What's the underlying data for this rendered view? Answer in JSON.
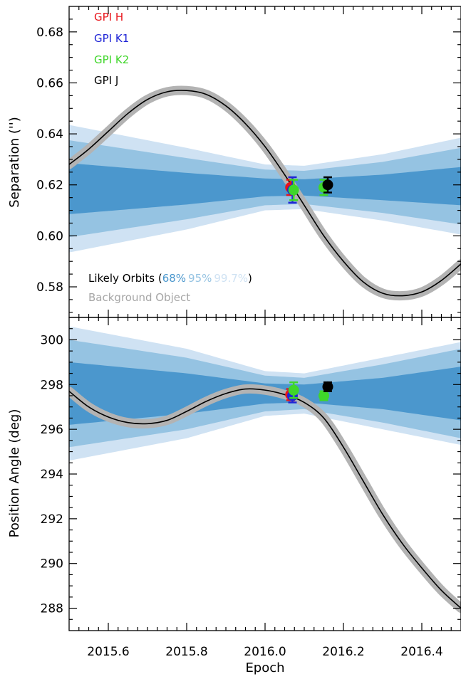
{
  "chart_data": [
    {
      "type": "line",
      "panel": "top",
      "ylabel": "Separation ('')",
      "xlim": [
        2015.5,
        2016.5
      ],
      "ylim": [
        0.568,
        0.69
      ],
      "yticks": [
        "0.58",
        "0.60",
        "0.62",
        "0.64",
        "0.66",
        "0.68"
      ],
      "ytick_values": [
        0.58,
        0.6,
        0.62,
        0.64,
        0.66,
        0.68
      ],
      "bands": {
        "center": [
          [
            2015.5,
            0.6185
          ],
          [
            2015.8,
            0.6185
          ],
          [
            2016.0,
            0.619
          ],
          [
            2016.1,
            0.619
          ],
          [
            2016.3,
            0.619
          ],
          [
            2016.5,
            0.6195
          ]
        ],
        "half_width_68": [
          [
            2015.5,
            0.01
          ],
          [
            2015.8,
            0.0062
          ],
          [
            2016.0,
            0.0035
          ],
          [
            2016.1,
            0.0032
          ],
          [
            2016.3,
            0.005
          ],
          [
            2016.5,
            0.0075
          ]
        ],
        "half_width_95": [
          [
            2015.5,
            0.019
          ],
          [
            2015.8,
            0.012
          ],
          [
            2016.0,
            0.007
          ],
          [
            2016.1,
            0.0065
          ],
          [
            2016.3,
            0.01
          ],
          [
            2016.5,
            0.015
          ]
        ],
        "half_width_99.7": [
          [
            2015.5,
            0.025
          ],
          [
            2015.8,
            0.016
          ],
          [
            2016.0,
            0.009
          ],
          [
            2016.1,
            0.0085
          ],
          [
            2016.3,
            0.013
          ],
          [
            2016.5,
            0.019
          ]
        ]
      },
      "background_track": [
        [
          2015.5,
          0.628
        ],
        [
          2015.55,
          0.634
        ],
        [
          2015.6,
          0.641
        ],
        [
          2015.65,
          0.648
        ],
        [
          2015.7,
          0.6535
        ],
        [
          2015.75,
          0.6565
        ],
        [
          2015.8,
          0.657
        ],
        [
          2015.85,
          0.6555
        ],
        [
          2015.9,
          0.651
        ],
        [
          2015.95,
          0.644
        ],
        [
          2016.0,
          0.635
        ],
        [
          2016.05,
          0.624
        ],
        [
          2016.1,
          0.612
        ],
        [
          2016.15,
          0.6
        ],
        [
          2016.2,
          0.59
        ],
        [
          2016.25,
          0.582
        ],
        [
          2016.3,
          0.5775
        ],
        [
          2016.35,
          0.5765
        ],
        [
          2016.4,
          0.578
        ],
        [
          2016.45,
          0.5825
        ],
        [
          2016.5,
          0.589
        ]
      ],
      "points": [
        {
          "series": "GPI H",
          "x": 2016.065,
          "y": 0.619,
          "yerr": 0.003
        },
        {
          "series": "GPI K1",
          "x": 2016.07,
          "y": 0.618,
          "yerr": 0.005
        },
        {
          "series": "GPI K2",
          "x": 2016.073,
          "y": 0.618,
          "yerr": 0.004
        },
        {
          "series": "GPI K2",
          "x": 2016.15,
          "y": 0.619,
          "yerr": 0.003
        },
        {
          "series": "GPI J",
          "x": 2016.16,
          "y": 0.62,
          "yerr": 0.003
        }
      ],
      "legend": [
        {
          "label": "GPI H",
          "color": "#e8141a"
        },
        {
          "label": "GPI K1",
          "color": "#1f25d6"
        },
        {
          "label": "GPI K2",
          "color": "#3fd62a"
        },
        {
          "label": "GPI J",
          "color": "#000000"
        }
      ],
      "annotation": {
        "likely_prefix": "Likely Orbits (",
        "p68": "68%",
        "p95": "95%",
        "p997": "99.7%",
        "likely_suffix": ")",
        "background": "Background Object"
      }
    },
    {
      "type": "line",
      "panel": "bottom",
      "xlabel": "Epoch",
      "ylabel": "Position Angle (deg)",
      "xlim": [
        2015.5,
        2016.5
      ],
      "ylim": [
        287.0,
        301.0
      ],
      "yticks": [
        "288",
        "290",
        "292",
        "294",
        "296",
        "298",
        "300"
      ],
      "ytick_values": [
        288,
        290,
        292,
        294,
        296,
        298,
        300
      ],
      "xticks": [
        "2015.6",
        "2015.8",
        "2016.0",
        "2016.2",
        "2016.4"
      ],
      "xtick_values": [
        2015.6,
        2015.8,
        2016.0,
        2016.2,
        2016.4
      ],
      "bands": {
        "center": [
          [
            2015.5,
            297.6
          ],
          [
            2015.8,
            297.6
          ],
          [
            2016.0,
            297.6
          ],
          [
            2016.1,
            297.6
          ],
          [
            2016.3,
            297.6
          ],
          [
            2016.5,
            297.6
          ]
        ],
        "half_width_68": [
          [
            2015.5,
            1.4
          ],
          [
            2015.8,
            0.9
          ],
          [
            2016.0,
            0.45
          ],
          [
            2016.1,
            0.4
          ],
          [
            2016.3,
            0.7
          ],
          [
            2016.5,
            1.2
          ]
        ],
        "half_width_95": [
          [
            2015.5,
            2.4
          ],
          [
            2015.8,
            1.6
          ],
          [
            2016.0,
            0.8
          ],
          [
            2016.1,
            0.7
          ],
          [
            2016.3,
            1.3
          ],
          [
            2016.5,
            2.0
          ]
        ],
        "half_width_99.7": [
          [
            2015.5,
            3.0
          ],
          [
            2015.8,
            2.0
          ],
          [
            2016.0,
            1.0
          ],
          [
            2016.1,
            0.9
          ],
          [
            2016.3,
            1.6
          ],
          [
            2016.5,
            2.3
          ]
        ]
      },
      "background_track": [
        [
          2015.5,
          297.7
        ],
        [
          2015.55,
          297.0
        ],
        [
          2015.6,
          296.55
        ],
        [
          2015.65,
          296.3
        ],
        [
          2015.7,
          296.25
        ],
        [
          2015.75,
          296.4
        ],
        [
          2015.8,
          296.8
        ],
        [
          2015.85,
          297.25
        ],
        [
          2015.9,
          297.6
        ],
        [
          2015.95,
          297.8
        ],
        [
          2016.0,
          297.75
        ],
        [
          2016.05,
          297.55
        ],
        [
          2016.1,
          297.2
        ],
        [
          2016.15,
          296.5
        ],
        [
          2016.2,
          295.2
        ],
        [
          2016.25,
          293.7
        ],
        [
          2016.3,
          292.2
        ],
        [
          2016.35,
          290.9
        ],
        [
          2016.4,
          289.8
        ],
        [
          2016.45,
          288.8
        ],
        [
          2016.5,
          288.0
        ]
      ],
      "points": [
        {
          "series": "GPI H",
          "x": 2016.065,
          "y": 297.55,
          "yerr": 0.25
        },
        {
          "series": "GPI K1",
          "x": 2016.07,
          "y": 297.5,
          "yerr": 0.3
        },
        {
          "series": "GPI K2",
          "x": 2016.073,
          "y": 297.75,
          "yerr": 0.35
        },
        {
          "series": "GPI K2",
          "x": 2016.15,
          "y": 297.5,
          "yerr": 0.2
        },
        {
          "series": "GPI J",
          "x": 2016.16,
          "y": 297.9,
          "yerr": 0.2
        }
      ]
    }
  ],
  "colors": {
    "band_68": "#4b97cd",
    "band_95": "#95c3e2",
    "band_997": "#cfe2f3",
    "background_outer": "#b3b3b3",
    "background_inner": "#000000",
    "axis": "#000000"
  }
}
